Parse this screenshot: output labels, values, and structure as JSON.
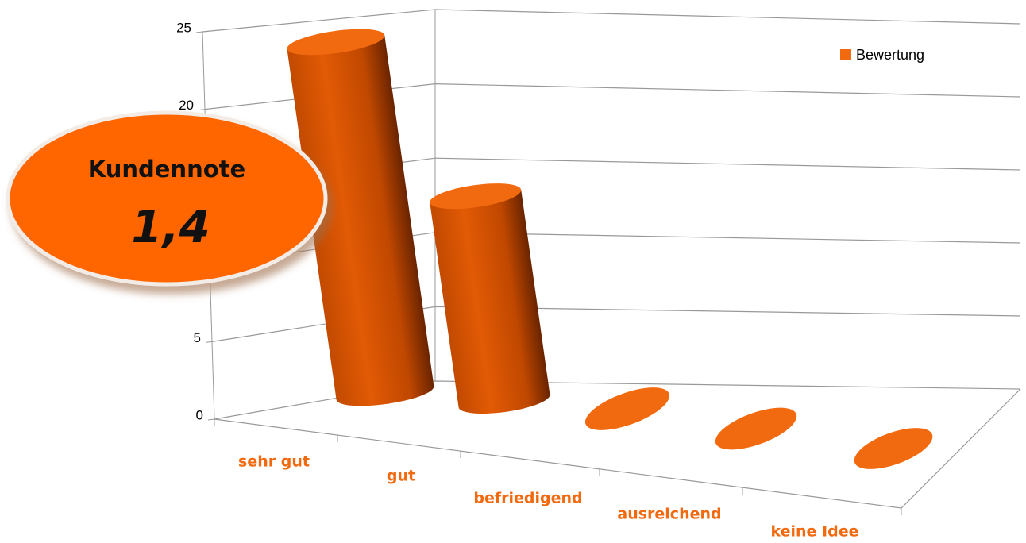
{
  "chart_data": {
    "type": "bar3d",
    "categories": [
      "sehr gut",
      "gut",
      "befriedigend",
      "ausreichend",
      "keine Idee"
    ],
    "series": [
      {
        "name": "Bewertung",
        "color": "#f26a10",
        "values": [
          24,
          14,
          0,
          0,
          0
        ]
      }
    ],
    "ylim": [
      0,
      25
    ],
    "yticks": [
      0,
      5,
      10,
      15,
      20,
      25
    ],
    "grid": true,
    "legend": "top-right"
  },
  "badge": {
    "title": "Kundennote",
    "value": "1,4"
  }
}
